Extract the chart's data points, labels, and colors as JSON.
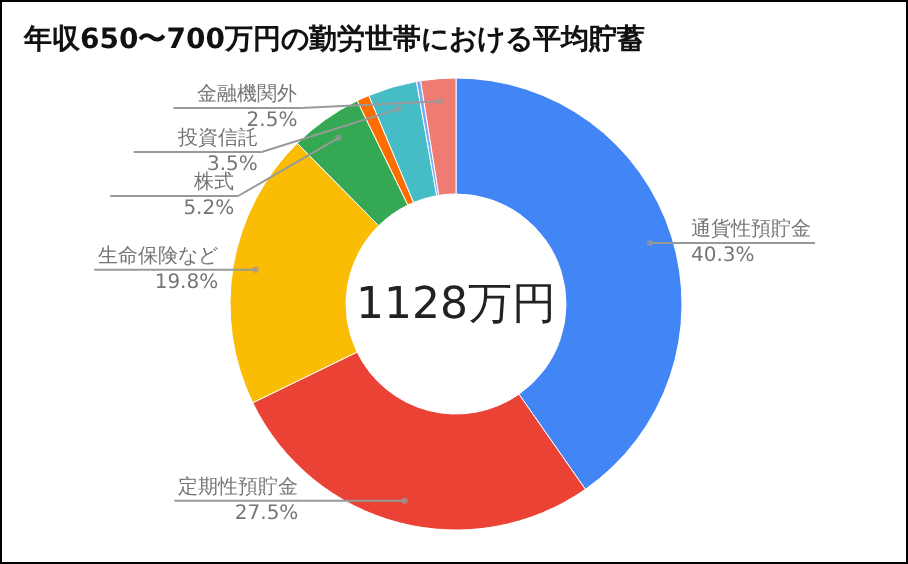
{
  "chart_data": {
    "type": "donut",
    "title": "年収650〜700万円の勤労世帯における平均貯蓄",
    "categories": [
      "通貨性預貯金",
      "定期性預貯金",
      "生命保険など",
      "株式",
      null,
      "投資信託",
      null,
      "金融機関外"
    ],
    "values": [
      40.3,
      27.5,
      19.8,
      5.2,
      0.9,
      3.5,
      0.3,
      2.5
    ],
    "value_labels": [
      "40.3%",
      "27.5%",
      "19.8%",
      "5.2%",
      null,
      "3.5%",
      null,
      "2.5%"
    ],
    "colors": [
      "#4285f4",
      "#ea4335",
      "#fbbc04",
      "#34a853",
      "#ff6d01",
      "#46bdc6",
      "#7baaf7",
      "#f07b72"
    ],
    "annotations": [
      "1128万円"
    ]
  }
}
